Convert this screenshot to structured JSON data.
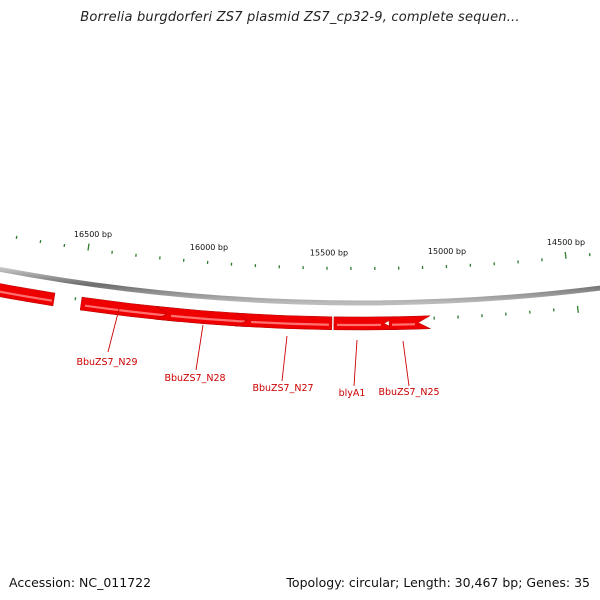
{
  "title": "Borrelia burgdorferi ZS7 plasmid ZS7_cp32-9, complete sequen...",
  "footer": {
    "accession": "Accession: NC_011722",
    "topology": "Topology: circular; Length: 30,467 bp; Genes: 35"
  },
  "colors": {
    "gene_fill": "#ee0000",
    "gene_highlight": "#ff7070",
    "backbone": "#888888",
    "tick": "#2e7d2e",
    "gene_label": "#cc0000"
  },
  "bp_labels": [
    "16500 bp",
    "16000 bp",
    "15500 bp",
    "15000 bp",
    "14500 bp"
  ],
  "genes": [
    {
      "name": "",
      "strand": "forward"
    },
    {
      "name": "BbuZS7_N29",
      "strand": "reverse"
    },
    {
      "name": "BbuZS7_N28",
      "strand": "forward"
    },
    {
      "name": "BbuZS7_N27",
      "strand": "forward"
    },
    {
      "name": "blyA1",
      "strand": "reverse"
    },
    {
      "name": "BbuZS7_N25",
      "strand": "reverse"
    }
  ]
}
